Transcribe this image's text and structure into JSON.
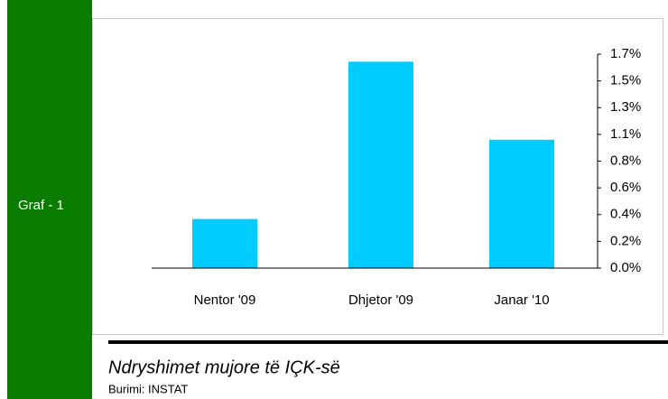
{
  "side_label": "Graf - 1",
  "chart_data": {
    "type": "bar",
    "categories": [
      "Nentor '09",
      "Dhjetor '09",
      "Janar '10"
    ],
    "values": [
      0.39,
      1.64,
      1.02
    ],
    "color": "#00ccff",
    "ylim": [
      0,
      1.7
    ],
    "yticks": [
      {
        "value": 0,
        "label": "0.0%"
      },
      {
        "value": 0.2125,
        "label": "0.2%"
      },
      {
        "value": 0.425,
        "label": "0.4%"
      },
      {
        "value": 0.6375,
        "label": "0.6%"
      },
      {
        "value": 0.85,
        "label": "0.8%"
      },
      {
        "value": 1.0625,
        "label": "1.1%"
      },
      {
        "value": 1.275,
        "label": "1.3%"
      },
      {
        "value": 1.4875,
        "label": "1.5%"
      },
      {
        "value": 1.7,
        "label": "1.7%"
      }
    ],
    "axis_side": "right"
  },
  "caption": {
    "title": "Ndryshimet mujore të IÇK-së",
    "source": "Burimi: INSTAT"
  }
}
